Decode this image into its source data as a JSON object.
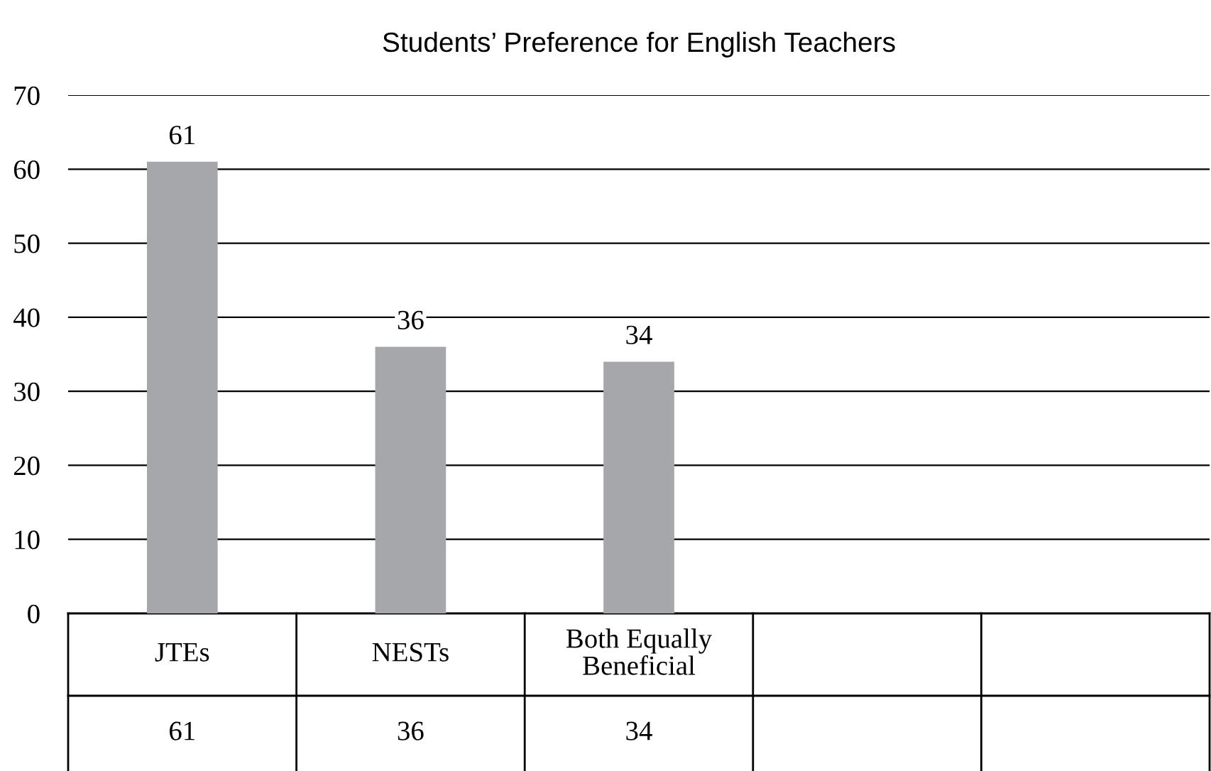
{
  "chart_data": {
    "type": "bar",
    "title": "Students’ Preference for English Teachers",
    "categories": [
      "JTEs",
      "NESTs",
      "Both Equally\nBeneficial",
      null,
      null
    ],
    "values": [
      61,
      36,
      34,
      null,
      null
    ],
    "value_labels": [
      "61",
      "36",
      "34",
      null,
      null
    ],
    "color": "#a6a7ab",
    "ylim": [
      0,
      70
    ],
    "yticks": [
      0,
      10,
      20,
      30,
      40,
      50,
      60,
      70
    ],
    "grid": "y",
    "annotations": [
      "61",
      "36",
      "34"
    ]
  }
}
